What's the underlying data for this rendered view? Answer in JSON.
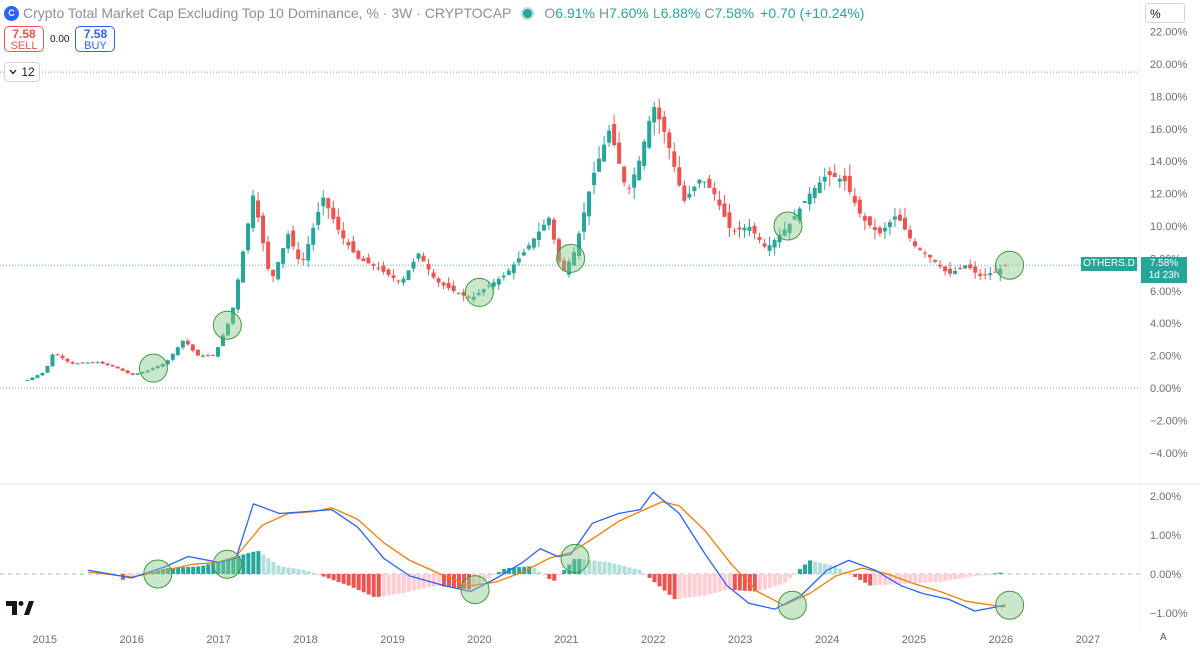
{
  "header": {
    "logo_text": "C",
    "title": "Crypto Total Market Cap Excluding Top 10 Dominance, % · 3W · CRYPTOCAP",
    "o_label": "O",
    "o_value": "6.91%",
    "h_label": "H",
    "h_value": "7.60%",
    "l_label": "L",
    "l_value": "6.88%",
    "c_label": "C",
    "c_value": "7.58%",
    "change": "+0.70 (+10.24%)"
  },
  "trade": {
    "sell_price": "7.58",
    "sell_label": "SELL",
    "spread": "0.00",
    "buy_price": "7.58",
    "buy_label": "BUY"
  },
  "interval": {
    "icon": "chevron-down-icon",
    "value": "12"
  },
  "scale_mode": "%",
  "last_price": {
    "symbol": "OTHERS.D",
    "value": "7.58%",
    "countdown": "1d 23h"
  },
  "auto_label": "A",
  "colors": {
    "up": "#26a69a",
    "down": "#ef5350",
    "macd": "#2962ff",
    "signal": "#f57c00",
    "circle_fill": "#8bc98b"
  },
  "chart_data": [
    {
      "type": "candlestick",
      "title": "Crypto Total Market Cap Excluding Top 10 Dominance, %",
      "ylabel": "%",
      "y_ticks": [
        "22.00%",
        "20.00%",
        "18.00%",
        "16.00%",
        "14.00%",
        "12.00%",
        "10.00%",
        "8.00%",
        "6.00%",
        "4.00%",
        "2.00%",
        "0.00%",
        "−2.00%",
        "−4.00%"
      ],
      "ylim": [
        -4.5,
        22.2
      ],
      "xlim": [
        2014.6,
        2027.6
      ],
      "x_ticks": [
        "2015",
        "2016",
        "2017",
        "2018",
        "2019",
        "2020",
        "2021",
        "2022",
        "2023",
        "2024",
        "2025",
        "2026",
        "2027"
      ],
      "reference_lines": [
        19.5,
        0.0
      ],
      "last_close": 7.58,
      "path_points": [
        [
          2014.8,
          0.5
        ],
        [
          2015.0,
          1.0
        ],
        [
          2015.1,
          2.2
        ],
        [
          2015.3,
          1.5
        ],
        [
          2015.6,
          1.6
        ],
        [
          2015.8,
          1.3
        ],
        [
          2016.0,
          0.8
        ],
        [
          2016.2,
          1.1
        ],
        [
          2016.4,
          1.6
        ],
        [
          2016.6,
          3.0
        ],
        [
          2016.75,
          2.0
        ],
        [
          2016.95,
          2.0
        ],
        [
          2017.15,
          4.5
        ],
        [
          2017.4,
          12.0
        ],
        [
          2017.6,
          6.5
        ],
        [
          2017.8,
          9.5
        ],
        [
          2017.95,
          7.5
        ],
        [
          2018.2,
          11.8
        ],
        [
          2018.4,
          9.5
        ],
        [
          2018.6,
          8.0
        ],
        [
          2018.8,
          7.5
        ],
        [
          2019.1,
          6.5
        ],
        [
          2019.3,
          8.3
        ],
        [
          2019.5,
          6.6
        ],
        [
          2019.7,
          6.0
        ],
        [
          2019.9,
          5.5
        ],
        [
          2020.1,
          6.3
        ],
        [
          2020.3,
          7.0
        ],
        [
          2020.5,
          8.3
        ],
        [
          2020.8,
          10.5
        ],
        [
          2020.95,
          7.0
        ],
        [
          2021.1,
          8.5
        ],
        [
          2021.3,
          13.0
        ],
        [
          2021.5,
          16.0
        ],
        [
          2021.7,
          12.0
        ],
        [
          2021.85,
          14.2
        ],
        [
          2022.0,
          17.5
        ],
        [
          2022.15,
          15.5
        ],
        [
          2022.35,
          11.5
        ],
        [
          2022.55,
          13.0
        ],
        [
          2022.7,
          12.0
        ],
        [
          2022.9,
          9.6
        ],
        [
          2023.1,
          10.0
        ],
        [
          2023.3,
          8.6
        ],
        [
          2023.55,
          10.0
        ],
        [
          2023.8,
          12.0
        ],
        [
          2024.0,
          13.2
        ],
        [
          2024.2,
          12.8
        ],
        [
          2024.4,
          10.5
        ],
        [
          2024.6,
          9.5
        ],
        [
          2024.8,
          10.7
        ],
        [
          2025.0,
          8.8
        ],
        [
          2025.2,
          8.0
        ],
        [
          2025.4,
          7.0
        ],
        [
          2025.6,
          7.6
        ],
        [
          2025.75,
          6.9
        ],
        [
          2025.95,
          7.2
        ],
        [
          2026.05,
          7.58
        ]
      ],
      "highlight_circles_x": [
        2016.25,
        2017.1,
        2020.0,
        2021.05,
        2023.55,
        2026.1
      ]
    },
    {
      "type": "macd",
      "series": [
        {
          "name": "macd",
          "color": "#2962ff"
        },
        {
          "name": "signal",
          "color": "#f57c00"
        },
        {
          "name": "histogram",
          "color": "#26a69a"
        }
      ],
      "y_ticks": [
        "2.00%",
        "1.00%",
        "0.00%",
        "−1.00%"
      ],
      "ylim": [
        -1.5,
        2.2
      ],
      "macd": [
        [
          2015.5,
          0.1
        ],
        [
          2016.0,
          -0.1
        ],
        [
          2016.4,
          0.2
        ],
        [
          2016.65,
          0.45
        ],
        [
          2017.0,
          0.3
        ],
        [
          2017.2,
          0.4
        ],
        [
          2017.4,
          1.8
        ],
        [
          2017.7,
          1.55
        ],
        [
          2018.0,
          1.6
        ],
        [
          2018.3,
          1.65
        ],
        [
          2018.6,
          1.2
        ],
        [
          2018.9,
          0.4
        ],
        [
          2019.2,
          -0.05
        ],
        [
          2019.6,
          -0.3
        ],
        [
          2019.9,
          -0.45
        ],
        [
          2020.2,
          -0.1
        ],
        [
          2020.5,
          0.3
        ],
        [
          2020.7,
          0.65
        ],
        [
          2020.9,
          0.45
        ],
        [
          2021.05,
          0.5
        ],
        [
          2021.3,
          1.3
        ],
        [
          2021.6,
          1.55
        ],
        [
          2021.85,
          1.65
        ],
        [
          2022.0,
          2.1
        ],
        [
          2022.3,
          1.55
        ],
        [
          2022.6,
          0.5
        ],
        [
          2022.85,
          -0.3
        ],
        [
          2023.1,
          -0.75
        ],
        [
          2023.4,
          -0.9
        ],
        [
          2023.7,
          -0.55
        ],
        [
          2024.0,
          0.1
        ],
        [
          2024.25,
          0.35
        ],
        [
          2024.55,
          0.1
        ],
        [
          2024.85,
          -0.3
        ],
        [
          2025.1,
          -0.5
        ],
        [
          2025.4,
          -0.65
        ],
        [
          2025.7,
          -0.95
        ],
        [
          2026.05,
          -0.8
        ]
      ],
      "signal": [
        [
          2015.5,
          0.05
        ],
        [
          2016.0,
          -0.08
        ],
        [
          2016.4,
          0.1
        ],
        [
          2016.7,
          0.25
        ],
        [
          2017.0,
          0.3
        ],
        [
          2017.2,
          0.45
        ],
        [
          2017.5,
          1.25
        ],
        [
          2017.8,
          1.55
        ],
        [
          2018.1,
          1.6
        ],
        [
          2018.3,
          1.7
        ],
        [
          2018.6,
          1.4
        ],
        [
          2018.9,
          0.8
        ],
        [
          2019.2,
          0.35
        ],
        [
          2019.6,
          -0.05
        ],
        [
          2019.9,
          -0.3
        ],
        [
          2020.2,
          -0.2
        ],
        [
          2020.5,
          0.05
        ],
        [
          2020.8,
          0.4
        ],
        [
          2021.05,
          0.55
        ],
        [
          2021.3,
          0.9
        ],
        [
          2021.6,
          1.35
        ],
        [
          2021.9,
          1.65
        ],
        [
          2022.1,
          1.85
        ],
        [
          2022.3,
          1.75
        ],
        [
          2022.6,
          1.1
        ],
        [
          2022.9,
          0.25
        ],
        [
          2023.2,
          -0.45
        ],
        [
          2023.5,
          -0.8
        ],
        [
          2023.8,
          -0.5
        ],
        [
          2024.1,
          -0.05
        ],
        [
          2024.4,
          0.15
        ],
        [
          2024.7,
          0.0
        ],
        [
          2025.0,
          -0.25
        ],
        [
          2025.3,
          -0.45
        ],
        [
          2025.6,
          -0.7
        ],
        [
          2026.05,
          -0.85
        ]
      ],
      "histogram_envelope": [
        [
          2015.9,
          -0.15
        ],
        [
          2016.4,
          0.15
        ],
        [
          2016.8,
          0.2
        ],
        [
          2017.2,
          0.45
        ],
        [
          2017.45,
          0.6
        ],
        [
          2017.7,
          0.2
        ],
        [
          2018.0,
          0.1
        ],
        [
          2018.5,
          -0.3
        ],
        [
          2018.8,
          -0.6
        ],
        [
          2019.1,
          -0.5
        ],
        [
          2019.5,
          -0.3
        ],
        [
          2019.9,
          -0.4
        ],
        [
          2020.3,
          0.15
        ],
        [
          2020.6,
          0.2
        ],
        [
          2020.85,
          -0.2
        ],
        [
          2021.1,
          0.4
        ],
        [
          2021.5,
          0.3
        ],
        [
          2021.85,
          0.1
        ],
        [
          2022.25,
          -0.65
        ],
        [
          2022.6,
          -0.55
        ],
        [
          2022.85,
          -0.4
        ],
        [
          2023.2,
          -0.45
        ],
        [
          2023.5,
          -0.25
        ],
        [
          2023.8,
          0.35
        ],
        [
          2024.1,
          0.2
        ],
        [
          2024.5,
          -0.3
        ],
        [
          2024.9,
          -0.25
        ],
        [
          2025.3,
          -0.2
        ],
        [
          2025.7,
          -0.05
        ],
        [
          2026.05,
          0.05
        ]
      ],
      "highlight_circles": [
        [
          2016.3,
          0.0
        ],
        [
          2017.1,
          0.25
        ],
        [
          2019.95,
          -0.4
        ],
        [
          2021.1,
          0.4
        ],
        [
          2023.6,
          -0.8
        ],
        [
          2026.1,
          -0.8
        ]
      ]
    }
  ]
}
